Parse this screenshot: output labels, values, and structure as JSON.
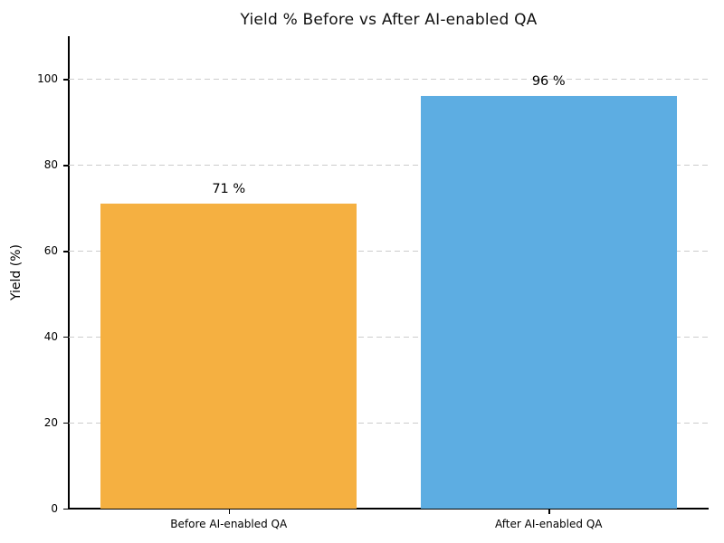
{
  "chart_data": {
    "type": "bar",
    "title": "Yield % Before vs After AI-enabled QA",
    "xlabel": "",
    "ylabel": "Yield (%)",
    "ylim": [
      0,
      110
    ],
    "yticks": [
      0,
      20,
      40,
      60,
      80,
      100
    ],
    "grid": "horizontal dashed",
    "legend_position": "none",
    "categories": [
      "Before AI-enabled QA",
      "After AI-enabled QA"
    ],
    "values": [
      71,
      96
    ],
    "bars": [
      {
        "category": "Before AI-enabled QA",
        "value": 71,
        "label": "71 %",
        "color": "#F5B041"
      },
      {
        "category": "After AI-enabled QA",
        "value": 96,
        "label": "96 %",
        "color": "#5DADE2"
      }
    ],
    "colors": {
      "grid": "#CCCCCC",
      "axis": "#000000",
      "text": "#000000",
      "background": "#FFFFFF"
    }
  }
}
